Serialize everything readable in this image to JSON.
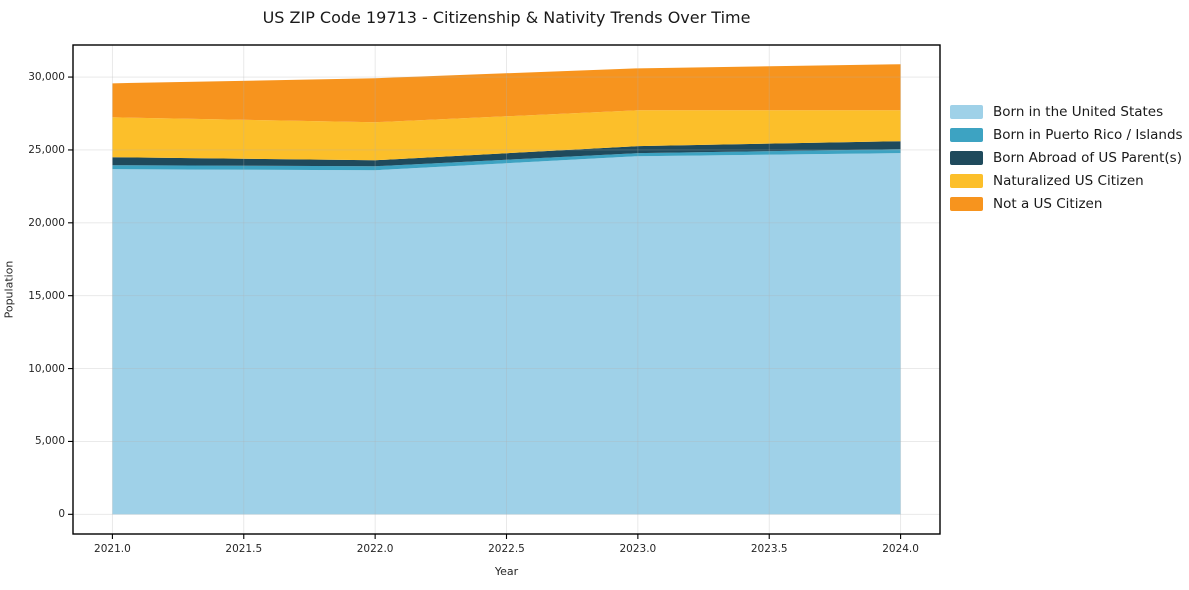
{
  "chart_data": {
    "type": "area",
    "stacked": true,
    "title": "US ZIP Code 19713 - Citizenship & Nativity Trends Over Time",
    "xlabel": "Year",
    "ylabel": "Population",
    "x": [
      2021,
      2022,
      2023,
      2024
    ],
    "series": [
      {
        "name": "Born in the United States",
        "color": "#9fd1e8",
        "values": [
          23680,
          23610,
          24570,
          24780
        ]
      },
      {
        "name": "Born in Puerto Rico / Islands",
        "color": "#3da3c2",
        "values": [
          270,
          270,
          210,
          270
        ]
      },
      {
        "name": "Born Abroad of US Parent(s)",
        "color": "#1f4a5c",
        "values": [
          550,
          410,
          480,
          550
        ]
      },
      {
        "name": "Naturalized US Citizen",
        "color": "#fcbf2a",
        "values": [
          2740,
          2610,
          2460,
          2120
        ]
      },
      {
        "name": "Not a US Citizen",
        "color": "#f7941e",
        "values": [
          2330,
          3020,
          2880,
          3160
        ]
      }
    ],
    "stack_totals": [
      29570,
      29920,
      30600,
      30880
    ],
    "xticks": {
      "values": [
        2021.0,
        2021.5,
        2022.0,
        2022.5,
        2023.0,
        2023.5,
        2024.0
      ],
      "labels": [
        "2021.0",
        "2021.5",
        "2022.0",
        "2022.5",
        "2023.0",
        "2023.5",
        "2024.0"
      ]
    },
    "yticks": {
      "values": [
        0,
        5000,
        10000,
        15000,
        20000,
        25000,
        30000
      ],
      "labels": [
        "0",
        "5,000",
        "10,000",
        "15,000",
        "20,000",
        "25,000",
        "30,000"
      ]
    },
    "xlim": [
      2020.85,
      2024.15
    ],
    "ylim": [
      -1350,
      32200
    ],
    "grid": true,
    "grid_color": "#b0b0b0",
    "axis_color": "#000000",
    "legend_position": "right"
  }
}
